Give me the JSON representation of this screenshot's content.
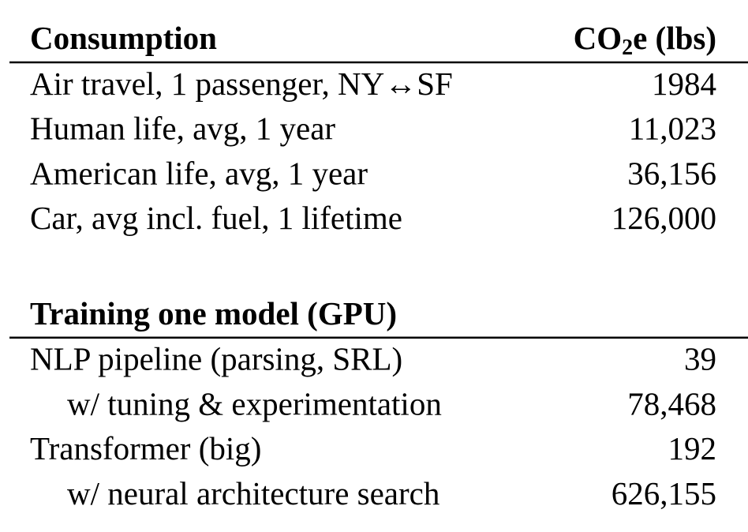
{
  "sections": [
    {
      "title": "Consumption",
      "value_header": [
        "CO",
        "2",
        "e (lbs)"
      ],
      "rows": [
        {
          "label": "Air travel, 1 passenger, NY↔SF",
          "value": "1984",
          "indent": false
        },
        {
          "label": "Human life, avg, 1 year",
          "value": "11,023",
          "indent": false
        },
        {
          "label": "American life, avg, 1 year",
          "value": "36,156",
          "indent": false
        },
        {
          "label": "Car, avg incl. fuel, 1 lifetime",
          "value": "126,000",
          "indent": false
        }
      ]
    },
    {
      "title": "Training one model (GPU)",
      "rows": [
        {
          "label": "NLP pipeline (parsing, SRL)",
          "value": "39",
          "indent": false
        },
        {
          "label": "w/ tuning & experimentation",
          "value": "78,468",
          "indent": true
        },
        {
          "label": "Transformer (big)",
          "value": "192",
          "indent": false
        },
        {
          "label": "w/ neural architecture search",
          "value": "626,155",
          "indent": true
        }
      ]
    }
  ]
}
